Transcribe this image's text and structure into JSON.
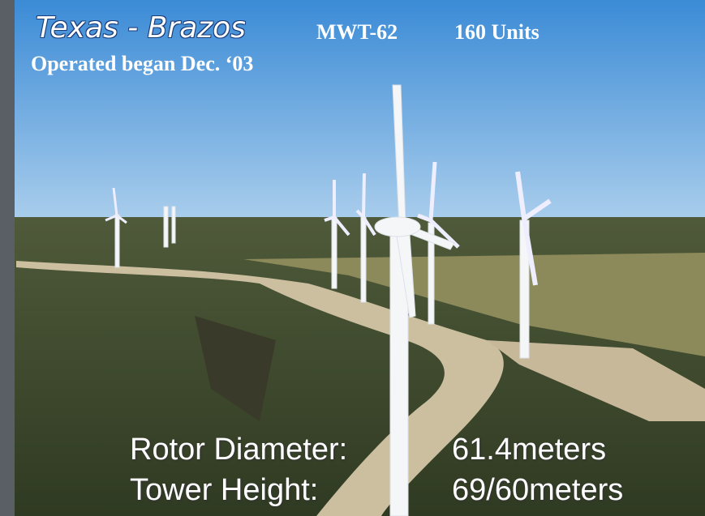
{
  "header": {
    "title": "Texas - Brazos",
    "model": "MWT-62",
    "units": "160 Units",
    "subtitle": "Operated began Dec. ‘03"
  },
  "specs": {
    "rows": [
      {
        "label": "Rotor Diameter:",
        "value": "61.4meters"
      },
      {
        "label": "Tower Height:",
        "value": "69/60meters"
      }
    ]
  }
}
